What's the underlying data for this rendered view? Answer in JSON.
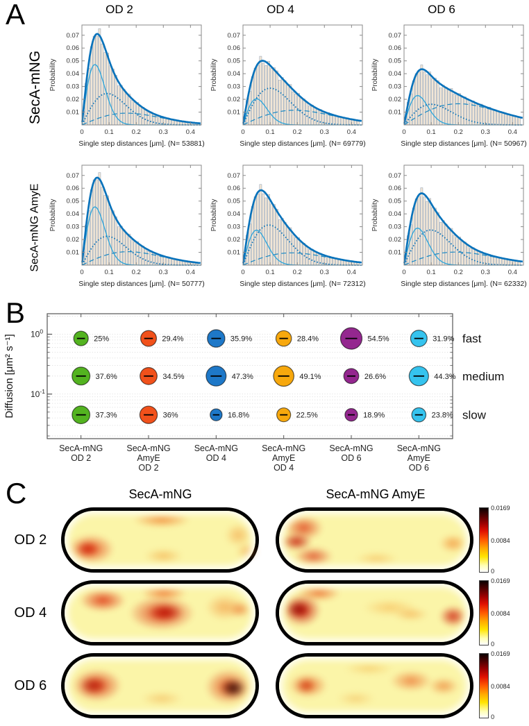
{
  "panels": {
    "a": "A",
    "b": "B",
    "c": "C"
  },
  "panelA": {
    "col_titles": [
      "OD 2",
      "OD 4",
      "OD 6"
    ],
    "row_labels": [
      "SecA-mNG",
      "SecA-mNG AmyE"
    ]
  },
  "chart_data": [
    {
      "id": "panelA_histograms",
      "type": "bar",
      "subtype": "histogram-with-mixture-fit",
      "ylabel": "Probability",
      "xticks": [
        0,
        0.1,
        0.2,
        0.3,
        0.4
      ],
      "yticks": [
        0.01,
        0.02,
        0.03,
        0.04,
        0.05,
        0.06,
        0.07
      ],
      "xlim": [
        0,
        0.44
      ],
      "ylim": [
        0,
        0.078
      ],
      "bin_width": 0.01,
      "line_color": "#0a73bb",
      "component_colors": [
        "#2aa5dc",
        "#0c74b8",
        "#1888c4"
      ],
      "bar_fill": "#f3e7d6",
      "bar_edge": "#92a2b6",
      "subplots": [
        {
          "row": "SecA-mNG",
          "col": "OD 2",
          "N": "53881",
          "xlabel": "Single step distances [μm]. (N= 53881)",
          "components": {
            "labels": [
              "slow",
              "medium",
              "fast"
            ],
            "weights": [
              0.373,
              0.376,
              0.25
            ],
            "sigmas": [
              0.048,
              0.093,
              0.165
            ]
          },
          "peak_total": 0.075
        },
        {
          "row": "SecA-mNG",
          "col": "OD 4",
          "N": "69779",
          "xlabel": "Single step distances [μm]. (N= 69779)",
          "components": {
            "labels": [
              "slow",
              "medium",
              "fast"
            ],
            "weights": [
              0.168,
              0.473,
              0.359
            ],
            "sigmas": [
              0.05,
              0.1,
              0.19
            ]
          },
          "peak_total": 0.054
        },
        {
          "row": "SecA-mNG",
          "col": "OD 6",
          "N": "50967",
          "xlabel": "Single step distances [μm]. (N= 50967)",
          "components": {
            "labels": [
              "slow",
              "medium",
              "fast"
            ],
            "weights": [
              0.189,
              0.266,
              0.545
            ],
            "sigmas": [
              0.05,
              0.1,
              0.2
            ]
          },
          "peak_total": 0.048
        },
        {
          "row": "SecA-mNG AmyE",
          "col": "OD 2",
          "N": "50777",
          "xlabel": "Single step distances [μm]. (N= 50777)",
          "components": {
            "labels": [
              "slow",
              "medium",
              "fast"
            ],
            "weights": [
              0.36,
              0.345,
              0.294
            ],
            "sigmas": [
              0.048,
              0.093,
              0.17
            ]
          },
          "peak_total": 0.073
        },
        {
          "row": "SecA-mNG AmyE",
          "col": "OD 4",
          "N": "72312",
          "xlabel": "Single step distances [μm]. (N= 72312)",
          "components": {
            "labels": [
              "slow",
              "medium",
              "fast"
            ],
            "weights": [
              0.225,
              0.491,
              0.284
            ],
            "sigmas": [
              0.05,
              0.095,
              0.18
            ]
          },
          "peak_total": 0.061
        },
        {
          "row": "SecA-mNG AmyE",
          "col": "OD 6",
          "N": "62332",
          "xlabel": "Single step distances [μm]. (N= 62332)",
          "components": {
            "labels": [
              "slow",
              "medium",
              "fast"
            ],
            "weights": [
              0.238,
              0.443,
              0.319
            ],
            "sigmas": [
              0.05,
              0.098,
              0.19
            ]
          },
          "peak_total": 0.061
        }
      ]
    },
    {
      "id": "panelB_bubbles",
      "type": "scatter",
      "subtype": "bubble",
      "ylabel": "Diffusion [μm² s⁻¹]",
      "row_labels": [
        "fast",
        "medium",
        "slow"
      ],
      "row_y_values": [
        0.85,
        0.2,
        0.045
      ],
      "ylim": [
        0.018,
        2.2
      ],
      "yticks": [
        {
          "v": 1,
          "base": "10",
          "exp": "0"
        },
        {
          "v": 0.1,
          "base": "10",
          "exp": "-1"
        }
      ],
      "grid": "dotted-minor-log",
      "groups": [
        {
          "label_lines": [
            "SecA-mNG",
            "OD 2"
          ],
          "color": "#53b320",
          "percentages": [
            25,
            37.6,
            37.3
          ],
          "labels": [
            "25%",
            "37.6%",
            "37.3%"
          ]
        },
        {
          "label_lines": [
            "SecA-mNG",
            "AmyE",
            "OD 2"
          ],
          "color": "#f1511b",
          "percentages": [
            29.4,
            34.5,
            36
          ],
          "labels": [
            "29.4%",
            "34.5%",
            "36%"
          ]
        },
        {
          "label_lines": [
            "SecA-mNG",
            "OD 4"
          ],
          "color": "#1e78c8",
          "percentages": [
            35.9,
            47.3,
            16.8
          ],
          "labels": [
            "35.9%",
            "47.3%",
            "16.8%"
          ]
        },
        {
          "label_lines": [
            "SecA-mNG",
            "AmyE",
            "OD 4"
          ],
          "color": "#f7a80d",
          "percentages": [
            28.4,
            49.1,
            22.5
          ],
          "labels": [
            "28.4%",
            "49.1%",
            "22.5%"
          ]
        },
        {
          "label_lines": [
            "SecA-mNG",
            "OD 6"
          ],
          "color": "#94278f",
          "percentages": [
            54.5,
            26.6,
            18.9
          ],
          "labels": [
            "54.5%",
            "26.6%",
            "18.9%"
          ]
        },
        {
          "label_lines": [
            "SecA-mNG",
            "AmyE",
            "OD 6"
          ],
          "color": "#35c3ee",
          "percentages": [
            31.9,
            44.3,
            23.8
          ],
          "labels": [
            "31.9%",
            "44.3%",
            "23.8%"
          ]
        }
      ]
    },
    {
      "id": "panelC_heatmaps",
      "type": "heatmap",
      "col_titles": [
        "SecA-mNG",
        "SecA-mNG AmyE"
      ],
      "row_labels": [
        "OD 2",
        "OD 4",
        "OD 6"
      ],
      "colorbar": {
        "max": "0.0169",
        "mid": "0.0084",
        "min": "0"
      },
      "cells": [
        {
          "row": "OD 2",
          "col": "SecA-mNG",
          "hotspots": [
            {
              "x": 2,
              "y": 40,
              "w": 24,
              "h": 50,
              "c": "#e03008",
              "o": 0.8
            },
            {
              "x": 6,
              "y": 52,
              "w": 12,
              "h": 26,
              "c": "#cc1804",
              "o": 0.85
            },
            {
              "x": 36,
              "y": 2,
              "w": 30,
              "h": 26,
              "c": "#ee6410",
              "o": 0.65
            },
            {
              "x": 84,
              "y": 22,
              "w": 14,
              "h": 40,
              "c": "#f08c2a",
              "o": 0.5
            },
            {
              "x": 42,
              "y": 64,
              "w": 20,
              "h": 26,
              "c": "#f0942a",
              "o": 0.5
            },
            {
              "x": 90,
              "y": 55,
              "w": 12,
              "h": 30,
              "c": "#ef7f20",
              "o": 0.45
            }
          ]
        },
        {
          "row": "OD 2",
          "col": "SecA-mNG AmyE",
          "hotspots": [
            {
              "x": 3,
              "y": 8,
              "w": 20,
              "h": 42,
              "c": "#dd3410",
              "o": 0.8
            },
            {
              "x": 1,
              "y": 38,
              "w": 16,
              "h": 30,
              "c": "#c41504",
              "o": 0.9
            },
            {
              "x": 8,
              "y": 62,
              "w": 20,
              "h": 32,
              "c": "#d93012",
              "o": 0.75
            },
            {
              "x": 84,
              "y": 40,
              "w": 14,
              "h": 32,
              "c": "#ef7214",
              "o": 0.6
            },
            {
              "x": 40,
              "y": 70,
              "w": 22,
              "h": 24,
              "c": "#f3a43c",
              "o": 0.45
            }
          ]
        },
        {
          "row": "OD 4",
          "col": "SecA-mNG",
          "hotspots": [
            {
              "x": 8,
              "y": 10,
              "w": 24,
              "h": 38,
              "c": "#dd2808",
              "o": 0.85
            },
            {
              "x": 34,
              "y": 22,
              "w": 34,
              "h": 58,
              "c": "#d92407",
              "o": 0.85
            },
            {
              "x": 44,
              "y": 34,
              "w": 18,
              "h": 30,
              "c": "#b80c02",
              "o": 0.9
            },
            {
              "x": 40,
              "y": 4,
              "w": 24,
              "h": 24,
              "c": "#ec5410",
              "o": 0.7
            },
            {
              "x": 74,
              "y": 18,
              "w": 20,
              "h": 45,
              "c": "#f0832a",
              "o": 0.55
            },
            {
              "x": 86,
              "y": 30,
              "w": 12,
              "h": 28,
              "c": "#e8601a",
              "o": 0.6
            }
          ]
        },
        {
          "row": "OD 4",
          "col": "SecA-mNG AmyE",
          "hotspots": [
            {
              "x": 2,
              "y": 18,
              "w": 20,
              "h": 55,
              "c": "#c91204",
              "o": 0.95
            },
            {
              "x": 4,
              "y": 30,
              "w": 12,
              "h": 28,
              "c": "#8f0401",
              "o": 0.85
            },
            {
              "x": 10,
              "y": 2,
              "w": 22,
              "h": 28,
              "c": "#e84c10",
              "o": 0.7
            },
            {
              "x": 84,
              "y": 38,
              "w": 14,
              "h": 36,
              "c": "#cc1505",
              "o": 0.85
            },
            {
              "x": 44,
              "y": 26,
              "w": 28,
              "h": 30,
              "c": "#f5a83c",
              "o": 0.5
            },
            {
              "x": 60,
              "y": 40,
              "w": 18,
              "h": 24,
              "c": "#f0922e",
              "o": 0.5
            }
          ]
        },
        {
          "row": "OD 6",
          "col": "SecA-mNG",
          "hotspots": [
            {
              "x": 4,
              "y": 22,
              "w": 26,
              "h": 55,
              "c": "#d92808",
              "o": 0.85
            },
            {
              "x": 8,
              "y": 35,
              "w": 14,
              "h": 30,
              "c": "#b01003",
              "o": 0.8
            },
            {
              "x": 74,
              "y": 22,
              "w": 24,
              "h": 60,
              "c": "#d93008",
              "o": 0.8
            },
            {
              "x": 82,
              "y": 38,
              "w": 13,
              "h": 32,
              "c": "#300300",
              "o": 0.95
            },
            {
              "x": 40,
              "y": 60,
              "w": 22,
              "h": 24,
              "c": "#f0a03a",
              "o": 0.45
            }
          ]
        },
        {
          "row": "OD 6",
          "col": "SecA-mNG AmyE",
          "hotspots": [
            {
              "x": 5,
              "y": 28,
              "w": 20,
              "h": 42,
              "c": "#e24c12",
              "o": 0.75
            },
            {
              "x": 9,
              "y": 38,
              "w": 10,
              "h": 24,
              "c": "#cc2a08",
              "o": 0.7
            },
            {
              "x": 58,
              "y": 24,
              "w": 22,
              "h": 35,
              "c": "#e85818",
              "o": 0.65
            },
            {
              "x": 78,
              "y": 36,
              "w": 16,
              "h": 30,
              "c": "#e86418",
              "o": 0.6
            },
            {
              "x": 34,
              "y": 10,
              "w": 26,
              "h": 22,
              "c": "#f2ae40",
              "o": 0.45
            },
            {
              "x": 30,
              "y": 60,
              "w": 20,
              "h": 24,
              "c": "#f0a43c",
              "o": 0.4
            }
          ]
        }
      ]
    }
  ]
}
